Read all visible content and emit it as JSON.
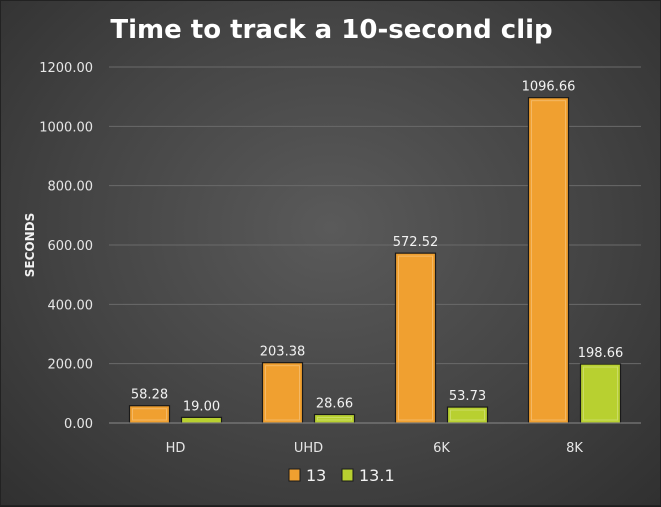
{
  "chart_data": {
    "type": "bar",
    "title": "Time to track a 10-second clip",
    "xlabel": "",
    "ylabel": "SECONDS",
    "categories": [
      "HD",
      "UHD",
      "6K",
      "8K"
    ],
    "series": [
      {
        "name": "13",
        "values": [
          58.28,
          203.38,
          572.52,
          1096.66
        ],
        "color": "#f0a030"
      },
      {
        "name": "13.1",
        "values": [
          19.0,
          28.66,
          53.73,
          198.66
        ],
        "color": "#b8d030"
      }
    ],
    "ylim": [
      0,
      1200
    ],
    "yticks": [
      "0.00",
      "200.00",
      "400.00",
      "600.00",
      "800.00",
      "1000.00",
      "1200.00"
    ],
    "data_labels": [
      [
        "58.28",
        "203.38",
        "572.52",
        "1096.66"
      ],
      [
        "19.00",
        "28.66",
        "53.73",
        "198.66"
      ]
    ],
    "grid": true,
    "legend_position": "bottom"
  }
}
